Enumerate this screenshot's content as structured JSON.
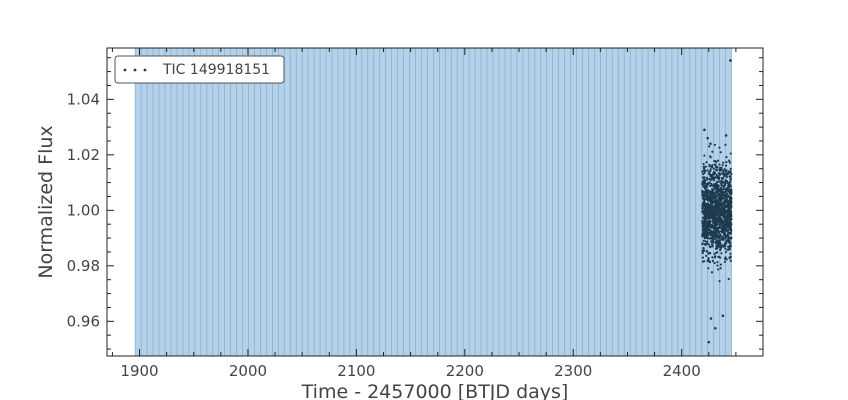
{
  "chart_data": {
    "type": "scatter",
    "title": "",
    "xlabel": "Time - 2457000 [BTJD days]",
    "ylabel": "Normalized Flux",
    "xlim": [
      1870,
      2475
    ],
    "ylim": [
      0.9475,
      1.0585
    ],
    "xticks": [
      1900,
      2000,
      2100,
      2200,
      2300,
      2400
    ],
    "yticks": [
      0.96,
      0.98,
      1.0,
      1.02,
      1.04
    ],
    "ytick_labels": [
      "0.96",
      "0.98",
      "1.00",
      "1.02",
      "1.04"
    ],
    "grid": false,
    "legend": {
      "position": "top-left",
      "entries": [
        "TIC 149918151"
      ]
    },
    "shaded_region": {
      "x_start": 1896,
      "x_end": 2446,
      "color": "#b3d1e8",
      "line_color": "#7fa6c4",
      "line_spacing_days": 5.5
    },
    "series": [
      {
        "name": "TIC 149918151",
        "color": "#1f3a4f",
        "x_range": [
          2419,
          2446
        ],
        "flux_center": 1.0,
        "flux_core_halfwidth": 0.018,
        "outliers": [
          {
            "x": 2421,
            "y": 1.029
          },
          {
            "x": 2424,
            "y": 1.026
          },
          {
            "x": 2441,
            "y": 1.027
          },
          {
            "x": 2425,
            "y": 0.9525
          },
          {
            "x": 2431,
            "y": 0.9575
          },
          {
            "x": 2427,
            "y": 0.961
          },
          {
            "x": 2438,
            "y": 0.962
          },
          {
            "x": 2445,
            "y": 1.054
          }
        ]
      }
    ]
  }
}
